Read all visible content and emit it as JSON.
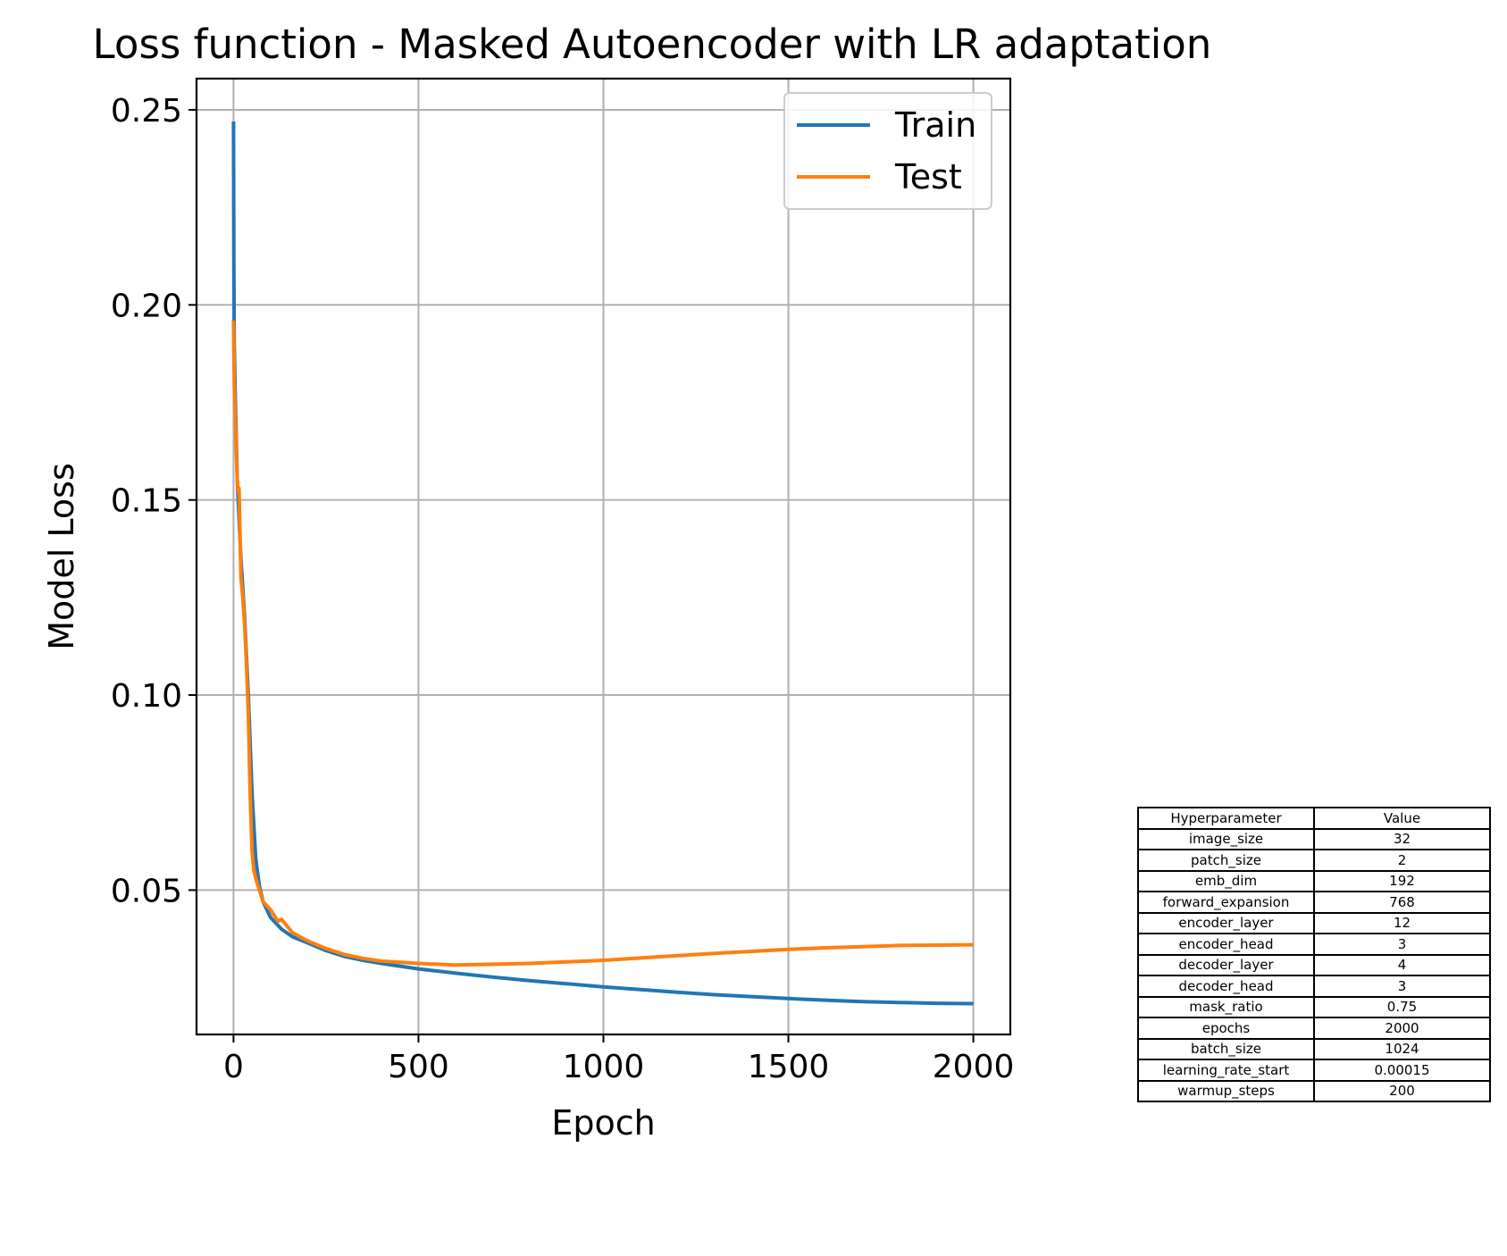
{
  "chart_data": {
    "type": "line",
    "title": "Loss function - Masked Autoencoder with LR adaptation",
    "xlabel": "Epoch",
    "ylabel": "Model Loss",
    "xlim": [
      -100,
      2100
    ],
    "ylim": [
      0.013,
      0.258
    ],
    "xticks": [
      0,
      500,
      1000,
      1500,
      2000
    ],
    "xtick_labels": [
      "0",
      "500",
      "1000",
      "1500",
      "2000"
    ],
    "yticks": [
      0.05,
      0.1,
      0.15,
      0.2,
      0.25
    ],
    "ytick_labels": [
      "0.05",
      "0.10",
      "0.15",
      "0.20",
      "0.25"
    ],
    "grid": true,
    "legend": "top-right",
    "series": [
      {
        "name": "Train",
        "color": "#1f77b4",
        "x": [
          0,
          1,
          2,
          5,
          10,
          20,
          30,
          40,
          50,
          60,
          70,
          80,
          100,
          130,
          160,
          200,
          250,
          300,
          350,
          400,
          500,
          600,
          700,
          800,
          900,
          1000,
          1100,
          1200,
          1300,
          1400,
          1500,
          1600,
          1700,
          1800,
          1900,
          2000
        ],
        "y": [
          0.247,
          0.21,
          0.19,
          0.175,
          0.155,
          0.135,
          0.12,
          0.1,
          0.075,
          0.058,
          0.051,
          0.047,
          0.043,
          0.04,
          0.038,
          0.0365,
          0.0345,
          0.033,
          0.032,
          0.0312,
          0.0298,
          0.0287,
          0.0277,
          0.0268,
          0.026,
          0.0252,
          0.0245,
          0.0238,
          0.0232,
          0.0227,
          0.0222,
          0.0218,
          0.0214,
          0.0212,
          0.021,
          0.0209
        ]
      },
      {
        "name": "Test",
        "color": "#ff7f0e",
        "x": [
          0,
          2,
          5,
          10,
          13,
          15,
          20,
          25,
          30,
          35,
          40,
          45,
          50,
          55,
          60,
          70,
          80,
          100,
          120,
          130,
          160,
          200,
          250,
          300,
          350,
          400,
          500,
          600,
          700,
          800,
          900,
          1000,
          1100,
          1200,
          1300,
          1400,
          1500,
          1600,
          1700,
          1800,
          1900,
          2000
        ],
        "y": [
          0.196,
          0.18,
          0.17,
          0.155,
          0.152,
          0.153,
          0.13,
          0.125,
          0.118,
          0.108,
          0.095,
          0.075,
          0.06,
          0.055,
          0.053,
          0.05,
          0.047,
          0.045,
          0.042,
          0.0425,
          0.039,
          0.037,
          0.035,
          0.0335,
          0.0325,
          0.0318,
          0.0312,
          0.0308,
          0.031,
          0.0312,
          0.0316,
          0.032,
          0.0326,
          0.0332,
          0.0338,
          0.0343,
          0.0348,
          0.0352,
          0.0355,
          0.0358,
          0.0359,
          0.036
        ]
      }
    ]
  },
  "table": {
    "headers": [
      "Hyperparameter",
      "Value"
    ],
    "rows": [
      [
        "image_size",
        "32"
      ],
      [
        "patch_size",
        "2"
      ],
      [
        "emb_dim",
        "192"
      ],
      [
        "forward_expansion",
        "768"
      ],
      [
        "encoder_layer",
        "12"
      ],
      [
        "encoder_head",
        "3"
      ],
      [
        "decoder_layer",
        "4"
      ],
      [
        "decoder_head",
        "3"
      ],
      [
        "mask_ratio",
        "0.75"
      ],
      [
        "epochs",
        "2000"
      ],
      [
        "batch_size",
        "1024"
      ],
      [
        "learning_rate_start",
        "0.00015"
      ],
      [
        "warmup_steps",
        "200"
      ]
    ]
  }
}
